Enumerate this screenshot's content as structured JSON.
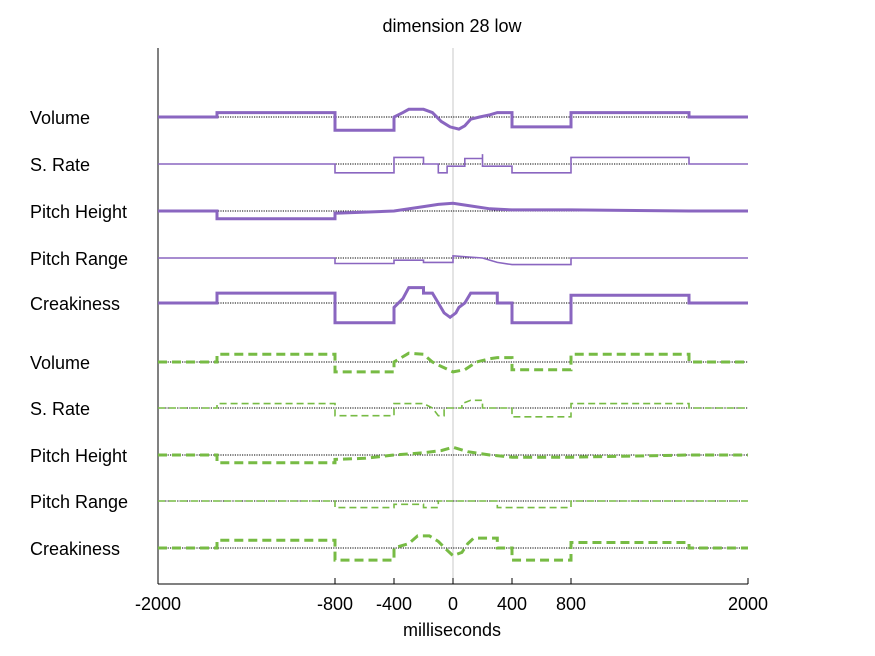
{
  "chart_data": {
    "type": "line",
    "title": "dimension 28 low",
    "xlabel": "milliseconds",
    "ylabel": "",
    "xlim": [
      -2000,
      2000
    ],
    "x_ticks": [
      -2000,
      -800,
      -400,
      0,
      400,
      800,
      2000
    ],
    "x_tick_labels": [
      "-2000",
      "-800",
      "-400",
      "0",
      "400",
      "800",
      "2000"
    ],
    "grid": false,
    "legend": "none",
    "colors": {
      "group1": "#8a66c0",
      "group2": "#77bb44",
      "baseline": "#000000",
      "zero_line": "#c8c8c8"
    },
    "groups": [
      {
        "style": "solid",
        "color": "#8a66c0",
        "rows": [
          {
            "label": "Volume",
            "weight": "thick",
            "points": [
              [
                -2000,
                0
              ],
              [
                -1600,
                0
              ],
              [
                -1600,
                0.2
              ],
              [
                -800,
                0.2
              ],
              [
                -800,
                -0.6
              ],
              [
                -400,
                -0.6
              ],
              [
                -400,
                0
              ],
              [
                -340,
                0.2
              ],
              [
                -300,
                0.35
              ],
              [
                -200,
                0.35
              ],
              [
                -140,
                0.2
              ],
              [
                -80,
                -0.2
              ],
              [
                -20,
                -0.45
              ],
              [
                40,
                -0.55
              ],
              [
                80,
                -0.4
              ],
              [
                120,
                -0.1
              ],
              [
                180,
                0
              ],
              [
                250,
                0.1
              ],
              [
                300,
                0.2
              ],
              [
                400,
                0.2
              ],
              [
                400,
                -0.45
              ],
              [
                800,
                -0.45
              ],
              [
                800,
                0.2
              ],
              [
                1600,
                0.2
              ],
              [
                1600,
                0
              ],
              [
                2000,
                0
              ]
            ]
          },
          {
            "label": "S. Rate",
            "weight": "thin",
            "points": [
              [
                -2000,
                0
              ],
              [
                -800,
                0
              ],
              [
                -800,
                -0.4
              ],
              [
                -400,
                -0.4
              ],
              [
                -400,
                0.3
              ],
              [
                -200,
                0.3
              ],
              [
                -200,
                0
              ],
              [
                -100,
                0
              ],
              [
                -100,
                -0.4
              ],
              [
                -40,
                -0.4
              ],
              [
                -40,
                -0.1
              ],
              [
                80,
                -0.1
              ],
              [
                80,
                0.25
              ],
              [
                200,
                0.25
              ],
              [
                200,
                0.45
              ],
              [
                200,
                -0.1
              ],
              [
                400,
                -0.1
              ],
              [
                400,
                -0.4
              ],
              [
                800,
                -0.4
              ],
              [
                800,
                0.3
              ],
              [
                1600,
                0.3
              ],
              [
                1600,
                0
              ],
              [
                2000,
                0
              ]
            ]
          },
          {
            "label": "Pitch Height",
            "weight": "thick",
            "points": [
              [
                -2000,
                0
              ],
              [
                -1600,
                0
              ],
              [
                -1600,
                -0.35
              ],
              [
                -800,
                -0.35
              ],
              [
                -800,
                -0.1
              ],
              [
                -400,
                0
              ],
              [
                -200,
                0.2
              ],
              [
                -100,
                0.3
              ],
              [
                0,
                0.35
              ],
              [
                100,
                0.25
              ],
              [
                250,
                0.1
              ],
              [
                400,
                0.05
              ],
              [
                800,
                0.05
              ],
              [
                1600,
                0
              ],
              [
                2000,
                0
              ]
            ]
          },
          {
            "label": "Pitch Range",
            "weight": "thin",
            "points": [
              [
                -2000,
                0
              ],
              [
                -800,
                0
              ],
              [
                -800,
                -0.25
              ],
              [
                -400,
                -0.25
              ],
              [
                -400,
                -0.1
              ],
              [
                -200,
                -0.1
              ],
              [
                -200,
                -0.2
              ],
              [
                0,
                -0.2
              ],
              [
                0,
                0.1
              ],
              [
                200,
                0
              ],
              [
                300,
                -0.2
              ],
              [
                400,
                -0.3
              ],
              [
                800,
                -0.3
              ],
              [
                800,
                0
              ],
              [
                2000,
                0
              ]
            ]
          },
          {
            "label": "Creakiness",
            "weight": "thick",
            "points": [
              [
                -2000,
                0
              ],
              [
                -1600,
                0
              ],
              [
                -1600,
                0.45
              ],
              [
                -800,
                0.45
              ],
              [
                -800,
                -0.9
              ],
              [
                -400,
                -0.9
              ],
              [
                -400,
                -0.2
              ],
              [
                -340,
                0.2
              ],
              [
                -300,
                0.7
              ],
              [
                -200,
                0.7
              ],
              [
                -200,
                0.45
              ],
              [
                -140,
                0.45
              ],
              [
                -100,
                0
              ],
              [
                -60,
                -0.45
              ],
              [
                -20,
                -0.65
              ],
              [
                20,
                -0.45
              ],
              [
                40,
                -0.2
              ],
              [
                80,
                0
              ],
              [
                120,
                0.45
              ],
              [
                300,
                0.45
              ],
              [
                300,
                0
              ],
              [
                400,
                0
              ],
              [
                400,
                -0.9
              ],
              [
                800,
                -0.9
              ],
              [
                800,
                0.35
              ],
              [
                1600,
                0.35
              ],
              [
                1600,
                0
              ],
              [
                2000,
                0
              ]
            ]
          }
        ]
      },
      {
        "style": "dashed",
        "color": "#77bb44",
        "rows": [
          {
            "label": "Volume",
            "weight": "thick",
            "points": [
              [
                -2000,
                0
              ],
              [
                -1600,
                0
              ],
              [
                -1600,
                0.35
              ],
              [
                -800,
                0.35
              ],
              [
                -800,
                -0.45
              ],
              [
                -400,
                -0.45
              ],
              [
                -400,
                0
              ],
              [
                -300,
                0.4
              ],
              [
                -200,
                0.35
              ],
              [
                -140,
                0
              ],
              [
                -80,
                -0.2
              ],
              [
                0,
                -0.45
              ],
              [
                80,
                -0.35
              ],
              [
                160,
                0
              ],
              [
                250,
                0.15
              ],
              [
                300,
                0.2
              ],
              [
                400,
                0.2
              ],
              [
                400,
                -0.35
              ],
              [
                800,
                -0.35
              ],
              [
                800,
                0.35
              ],
              [
                1600,
                0.35
              ],
              [
                1600,
                0
              ],
              [
                2000,
                0
              ]
            ]
          },
          {
            "label": "S. Rate",
            "weight": "thin",
            "points": [
              [
                -2000,
                0
              ],
              [
                -1600,
                0
              ],
              [
                -1600,
                0.2
              ],
              [
                -800,
                0.2
              ],
              [
                -800,
                -0.35
              ],
              [
                -400,
                -0.35
              ],
              [
                -400,
                0.2
              ],
              [
                -200,
                0.2
              ],
              [
                -140,
                0
              ],
              [
                -100,
                -0.35
              ],
              [
                -60,
                -0.35
              ],
              [
                -60,
                0
              ],
              [
                60,
                0
              ],
              [
                60,
                0.2
              ],
              [
                120,
                0.35
              ],
              [
                200,
                0.35
              ],
              [
                200,
                0
              ],
              [
                400,
                0
              ],
              [
                400,
                -0.4
              ],
              [
                800,
                -0.4
              ],
              [
                800,
                0.2
              ],
              [
                1600,
                0.2
              ],
              [
                1600,
                0
              ],
              [
                2000,
                0
              ]
            ]
          },
          {
            "label": "Pitch Height",
            "weight": "thick",
            "points": [
              [
                -2000,
                0
              ],
              [
                -1600,
                0
              ],
              [
                -1600,
                -0.35
              ],
              [
                -800,
                -0.35
              ],
              [
                -800,
                -0.2
              ],
              [
                -600,
                -0.15
              ],
              [
                -400,
                0
              ],
              [
                -200,
                0.1
              ],
              [
                -80,
                0.2
              ],
              [
                0,
                0.35
              ],
              [
                100,
                0.15
              ],
              [
                250,
                0
              ],
              [
                400,
                -0.1
              ],
              [
                800,
                -0.1
              ],
              [
                1600,
                0
              ],
              [
                2000,
                0
              ]
            ]
          },
          {
            "label": "Pitch Range",
            "weight": "thin",
            "points": [
              [
                -2000,
                0
              ],
              [
                -800,
                0
              ],
              [
                -800,
                -0.3
              ],
              [
                -400,
                -0.3
              ],
              [
                -400,
                -0.15
              ],
              [
                -200,
                -0.15
              ],
              [
                -200,
                -0.3
              ],
              [
                -100,
                -0.3
              ],
              [
                -100,
                0
              ],
              [
                300,
                0
              ],
              [
                300,
                -0.3
              ],
              [
                800,
                -0.3
              ],
              [
                800,
                0
              ],
              [
                2000,
                0
              ]
            ]
          },
          {
            "label": "Creakiness",
            "weight": "thick",
            "points": [
              [
                -2000,
                0
              ],
              [
                -1600,
                0
              ],
              [
                -1600,
                0.35
              ],
              [
                -800,
                0.35
              ],
              [
                -800,
                -0.55
              ],
              [
                -400,
                -0.55
              ],
              [
                -400,
                0
              ],
              [
                -300,
                0.2
              ],
              [
                -240,
                0.55
              ],
              [
                -160,
                0.55
              ],
              [
                -100,
                0.3
              ],
              [
                -40,
                -0.1
              ],
              [
                0,
                -0.35
              ],
              [
                60,
                -0.2
              ],
              [
                100,
                0.2
              ],
              [
                140,
                0.45
              ],
              [
                300,
                0.45
              ],
              [
                300,
                0
              ],
              [
                400,
                0
              ],
              [
                400,
                -0.55
              ],
              [
                800,
                -0.55
              ],
              [
                800,
                0.25
              ],
              [
                1600,
                0.25
              ],
              [
                1600,
                0
              ],
              [
                2000,
                0
              ]
            ]
          }
        ]
      }
    ]
  }
}
